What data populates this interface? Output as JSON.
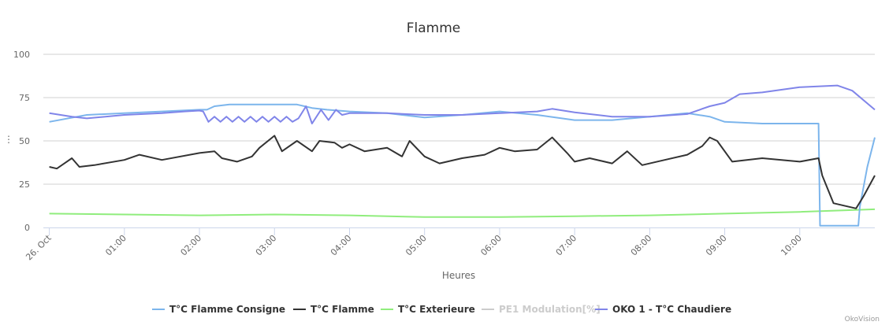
{
  "chart_data": {
    "type": "line",
    "title": "Flamme",
    "xlabel": "Heures",
    "ylabel": "",
    "xlim": [
      -0.08,
      11.0
    ],
    "ylim": [
      0,
      100
    ],
    "yticks": [
      0,
      25,
      50,
      75,
      100
    ],
    "xticks": [
      {
        "v": 0,
        "label": "26. Oct"
      },
      {
        "v": 1,
        "label": "01:00"
      },
      {
        "v": 2,
        "label": "02:00"
      },
      {
        "v": 3,
        "label": "03:00"
      },
      {
        "v": 4,
        "label": "04:00"
      },
      {
        "v": 5,
        "label": "05:00"
      },
      {
        "v": 6,
        "label": "06:00"
      },
      {
        "v": 7,
        "label": "07:00"
      },
      {
        "v": 8,
        "label": "08:00"
      },
      {
        "v": 9,
        "label": "09:00"
      },
      {
        "v": 10,
        "label": "10:00"
      }
    ],
    "grid": true,
    "legend_position": "bottom",
    "series": [
      {
        "name": "T°C Flamme Consigne",
        "color": "#7cb5ec",
        "visible": true,
        "points": [
          [
            0,
            61
          ],
          [
            0.5,
            65
          ],
          [
            1,
            66
          ],
          [
            1.5,
            67
          ],
          [
            2,
            68
          ],
          [
            2.1,
            68
          ],
          [
            2.2,
            70
          ],
          [
            2.4,
            71
          ],
          [
            3,
            71
          ],
          [
            3.3,
            71
          ],
          [
            3.4,
            70
          ],
          [
            3.5,
            69
          ],
          [
            3.7,
            68
          ],
          [
            4,
            67
          ],
          [
            4.5,
            66
          ],
          [
            5,
            63.5
          ],
          [
            5.5,
            65
          ],
          [
            6,
            67
          ],
          [
            6.5,
            65
          ],
          [
            7,
            62
          ],
          [
            7.5,
            62
          ],
          [
            8,
            64
          ],
          [
            8.5,
            66
          ],
          [
            8.8,
            64
          ],
          [
            9,
            61
          ],
          [
            9.5,
            60
          ],
          [
            10.25,
            60
          ],
          [
            10.27,
            1
          ],
          [
            10.78,
            1
          ],
          [
            10.8,
            12
          ],
          [
            10.9,
            35
          ],
          [
            11,
            52
          ]
        ]
      },
      {
        "name": "T°C Flamme",
        "color": "#333333",
        "visible": true,
        "points": [
          [
            0,
            35
          ],
          [
            0.1,
            34
          ],
          [
            0.2,
            37
          ],
          [
            0.3,
            40
          ],
          [
            0.4,
            35
          ],
          [
            0.6,
            36
          ],
          [
            1,
            39
          ],
          [
            1.2,
            42
          ],
          [
            1.5,
            39
          ],
          [
            2,
            43
          ],
          [
            2.2,
            44
          ],
          [
            2.3,
            40
          ],
          [
            2.5,
            38
          ],
          [
            2.7,
            41
          ],
          [
            2.8,
            46
          ],
          [
            3,
            53
          ],
          [
            3.1,
            44
          ],
          [
            3.3,
            50
          ],
          [
            3.5,
            44
          ],
          [
            3.6,
            50
          ],
          [
            3.8,
            49
          ],
          [
            3.9,
            46
          ],
          [
            4,
            48
          ],
          [
            4.2,
            44
          ],
          [
            4.5,
            46
          ],
          [
            4.7,
            41
          ],
          [
            4.8,
            50
          ],
          [
            5,
            41
          ],
          [
            5.2,
            37
          ],
          [
            5.5,
            40
          ],
          [
            5.8,
            42
          ],
          [
            6,
            46
          ],
          [
            6.2,
            44
          ],
          [
            6.5,
            45
          ],
          [
            6.7,
            52
          ],
          [
            6.9,
            43
          ],
          [
            7,
            38
          ],
          [
            7.2,
            40
          ],
          [
            7.5,
            37
          ],
          [
            7.7,
            44
          ],
          [
            7.9,
            36
          ],
          [
            8.2,
            39
          ],
          [
            8.5,
            42
          ],
          [
            8.7,
            47
          ],
          [
            8.8,
            52
          ],
          [
            8.9,
            50
          ],
          [
            9.1,
            38
          ],
          [
            9.5,
            40
          ],
          [
            10,
            38
          ],
          [
            10.25,
            40
          ],
          [
            10.3,
            30
          ],
          [
            10.45,
            14
          ],
          [
            10.75,
            11
          ],
          [
            10.85,
            18
          ],
          [
            11,
            30
          ]
        ]
      },
      {
        "name": "T°C Exterieure",
        "color": "#90ed7d",
        "visible": true,
        "points": [
          [
            0,
            8
          ],
          [
            2,
            7
          ],
          [
            3,
            7.5
          ],
          [
            4,
            7
          ],
          [
            5,
            6
          ],
          [
            6,
            6
          ],
          [
            7,
            6.5
          ],
          [
            8,
            7
          ],
          [
            9,
            8
          ],
          [
            10,
            9
          ],
          [
            11,
            10.5
          ]
        ]
      },
      {
        "name": "PE1 Modulation[%]",
        "color": "#cccccc",
        "visible": false,
        "points": []
      },
      {
        "name": "OKO 1 - T°C Chaudiere",
        "color": "#8085e9",
        "visible": true,
        "points": [
          [
            0,
            66
          ],
          [
            0.3,
            64
          ],
          [
            0.5,
            63
          ],
          [
            1,
            65
          ],
          [
            1.5,
            66
          ],
          [
            1.8,
            67
          ],
          [
            2,
            67.5
          ],
          [
            2.05,
            67
          ],
          [
            2.12,
            61
          ],
          [
            2.2,
            64
          ],
          [
            2.28,
            61
          ],
          [
            2.36,
            64
          ],
          [
            2.44,
            61
          ],
          [
            2.52,
            64
          ],
          [
            2.6,
            61
          ],
          [
            2.68,
            64
          ],
          [
            2.76,
            61
          ],
          [
            2.84,
            64
          ],
          [
            2.92,
            61
          ],
          [
            3,
            64
          ],
          [
            3.08,
            61
          ],
          [
            3.16,
            64
          ],
          [
            3.24,
            61
          ],
          [
            3.32,
            63
          ],
          [
            3.42,
            70
          ],
          [
            3.5,
            60
          ],
          [
            3.62,
            68
          ],
          [
            3.72,
            62
          ],
          [
            3.82,
            68
          ],
          [
            3.9,
            65
          ],
          [
            4,
            66
          ],
          [
            4.5,
            66
          ],
          [
            5,
            65
          ],
          [
            5.5,
            65
          ],
          [
            6,
            66
          ],
          [
            6.5,
            67
          ],
          [
            6.7,
            68.5
          ],
          [
            7,
            66.5
          ],
          [
            7.5,
            64
          ],
          [
            8,
            64
          ],
          [
            8.5,
            65.5
          ],
          [
            8.8,
            70
          ],
          [
            9,
            72
          ],
          [
            9.2,
            77
          ],
          [
            9.5,
            78
          ],
          [
            10,
            81
          ],
          [
            10.5,
            82
          ],
          [
            10.7,
            79
          ],
          [
            11,
            68
          ]
        ]
      }
    ]
  },
  "ui": {
    "menu_handle": "⋮",
    "credit": "OkoVision"
  }
}
